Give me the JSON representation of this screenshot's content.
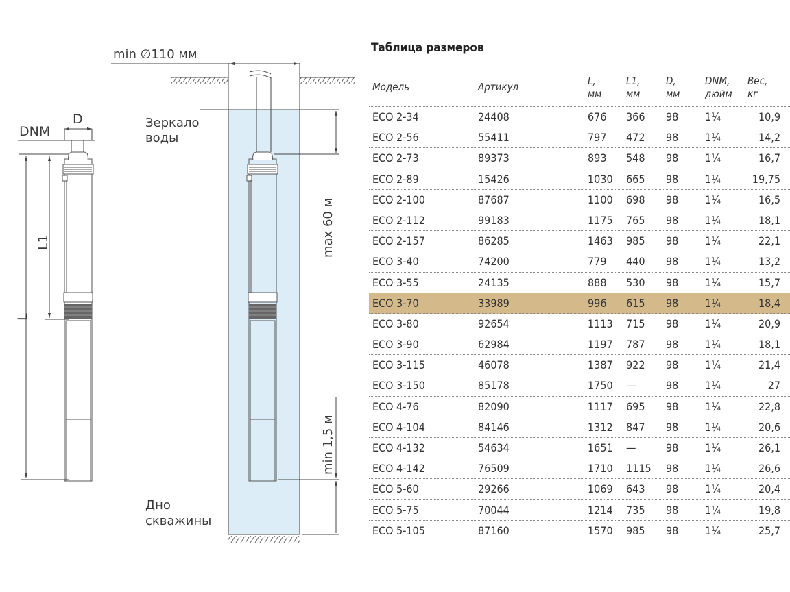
{
  "diagram": {
    "min_diameter": "min ∅110 мм",
    "dnm": "DNM",
    "d": "D",
    "l": "L",
    "l1": "L1",
    "water_level": [
      "Зеркало",
      "воды"
    ],
    "max_depth": "max 60 м",
    "min_bottom": "min 1,5 м",
    "well_bottom": [
      "Дно",
      "скважины"
    ],
    "water_color": "#dcedf7"
  },
  "table": {
    "title": "Таблица размеров",
    "highlight_color": "#d4ba8a",
    "highlighted_model": "ECO 3-70",
    "headers": [
      [
        "Модель"
      ],
      [
        "Артикул"
      ],
      [
        "L,",
        "мм"
      ],
      [
        "L1,",
        "мм"
      ],
      [
        "D,",
        "мм"
      ],
      [
        "DNM,",
        "дюйм"
      ],
      [
        "Вес,",
        "кг"
      ]
    ],
    "rows": [
      [
        "ECO 2-34",
        "24408",
        "676",
        "366",
        "98",
        "1¼",
        "10,9"
      ],
      [
        "ECO 2-56",
        "55411",
        "797",
        "472",
        "98",
        "1¼",
        "14,2"
      ],
      [
        "ECO 2-73",
        "89373",
        "893",
        "548",
        "98",
        "1¼",
        "16,7"
      ],
      [
        "ECO 2-89",
        "15426",
        "1030",
        "665",
        "98",
        "1¼",
        "19,75"
      ],
      [
        "ECO 2-100",
        "87687",
        "1100",
        "698",
        "98",
        "1¼",
        "16,5"
      ],
      [
        "ECO 2-112",
        "99183",
        "1175",
        "765",
        "98",
        "1¼",
        "18,1"
      ],
      [
        "ECO 2-157",
        "86285",
        "1463",
        "985",
        "98",
        "1¼",
        "22,1"
      ],
      [
        "ECO 3-40",
        "74200",
        "779",
        "440",
        "98",
        "1¼",
        "13,2"
      ],
      [
        "ECO 3-55",
        "24135",
        "888",
        "530",
        "98",
        "1¼",
        "15,7"
      ],
      [
        "ECO 3-70",
        "33989",
        "996",
        "615",
        "98",
        "1¼",
        "18,4"
      ],
      [
        "ECO 3-80",
        "92654",
        "1113",
        "715",
        "98",
        "1¼",
        "20,9"
      ],
      [
        "ECO 3-90",
        "62984",
        "1197",
        "787",
        "98",
        "1¼",
        "18,1"
      ],
      [
        "ECO 3-115",
        "46078",
        "1387",
        "922",
        "98",
        "1¼",
        "21,4"
      ],
      [
        "ECO 3-150",
        "85178",
        "1750",
        "—",
        "98",
        "1¼",
        "27"
      ],
      [
        "ECO 4-76",
        "82090",
        "1117",
        "695",
        "98",
        "1¼",
        "22,8"
      ],
      [
        "ECO 4-104",
        "84146",
        "1312",
        "847",
        "98",
        "1¼",
        "20,6"
      ],
      [
        "ECO 4-132",
        "54634",
        "1651",
        "—",
        "98",
        "1¼",
        "26,1"
      ],
      [
        "ECO 4-142",
        "76509",
        "1710",
        "1115",
        "98",
        "1¼",
        "26,6"
      ],
      [
        "ECO 5-60",
        "29266",
        "1069",
        "643",
        "98",
        "1¼",
        "20,4"
      ],
      [
        "ECO 5-75",
        "70044",
        "1214",
        "735",
        "98",
        "1¼",
        "19,8"
      ],
      [
        "ECO 5-105",
        "87160",
        "1570",
        "985",
        "98",
        "1¼",
        "25,7"
      ]
    ]
  }
}
